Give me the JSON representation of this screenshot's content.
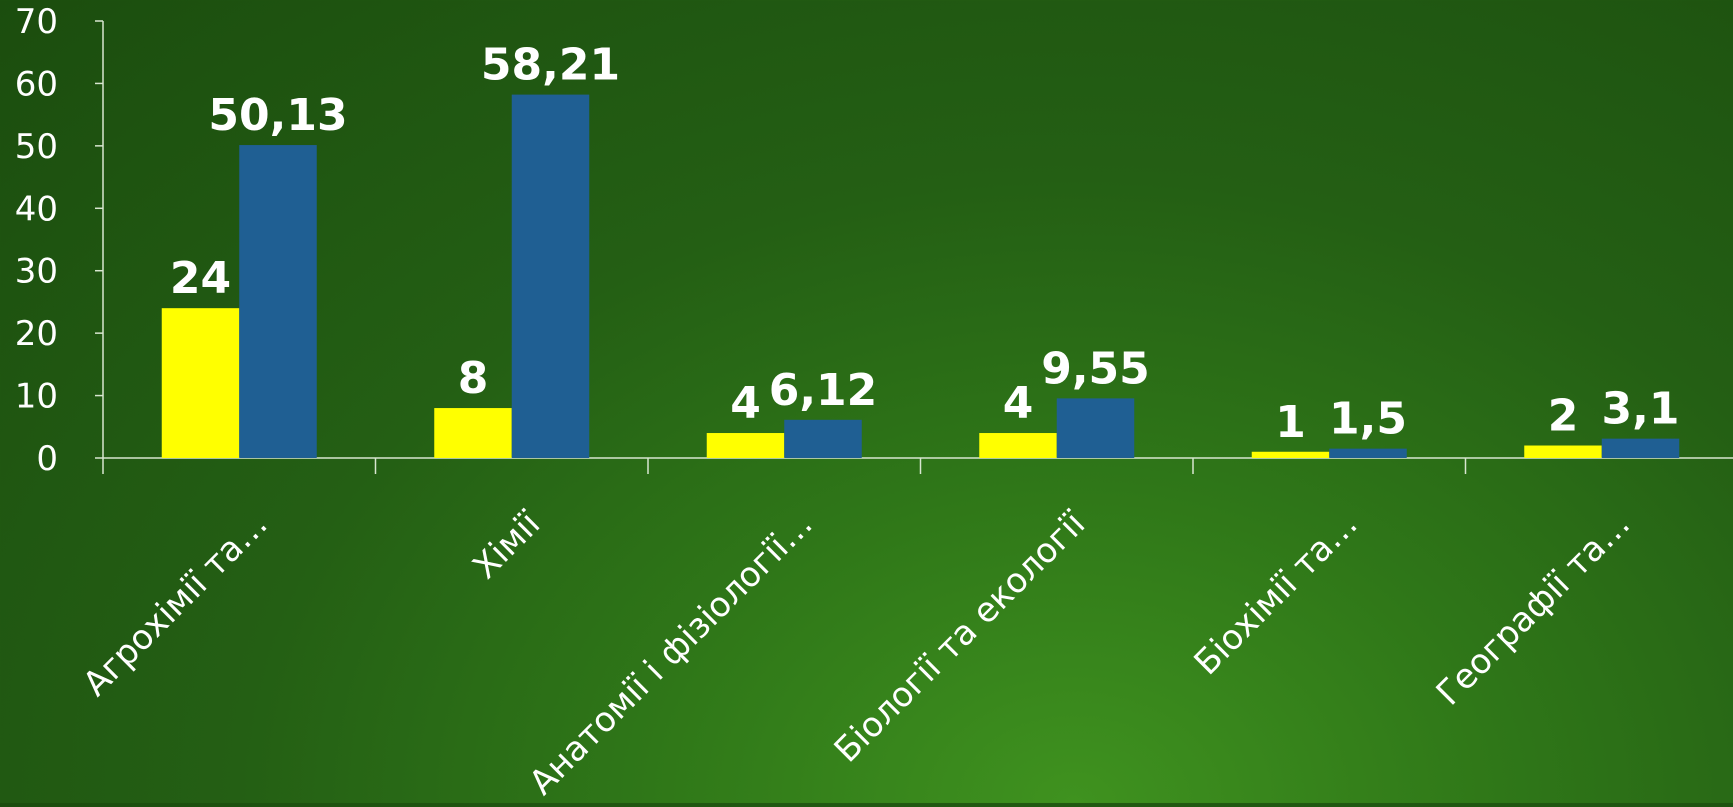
{
  "chart_data": {
    "type": "bar",
    "title": "",
    "xlabel": "",
    "ylabel": "",
    "ylim": [
      0,
      70
    ],
    "yticks": [
      0,
      10,
      20,
      30,
      40,
      50,
      60,
      70
    ],
    "grid": false,
    "legend": "none",
    "categories": [
      "Агрохімії та…",
      "Хімії",
      "Анатомії і фізіології…",
      "Біології та екології",
      "Біохімії та…",
      "Географії та…"
    ],
    "series": [
      {
        "color": "#ffff00",
        "values": [
          24,
          8,
          4,
          4,
          1,
          2
        ],
        "labels": [
          "24",
          "8",
          "4",
          "4",
          "1",
          "2"
        ]
      },
      {
        "color": "#1f5f93",
        "values": [
          50.13,
          58.21,
          6.12,
          9.55,
          1.5,
          3.1
        ],
        "labels": [
          "50,13",
          "58,21",
          "6,12",
          "9,55",
          "1,5",
          "3,1"
        ]
      }
    ],
    "axis_color": "#d8e6d0",
    "text_color": "#ffffff"
  }
}
